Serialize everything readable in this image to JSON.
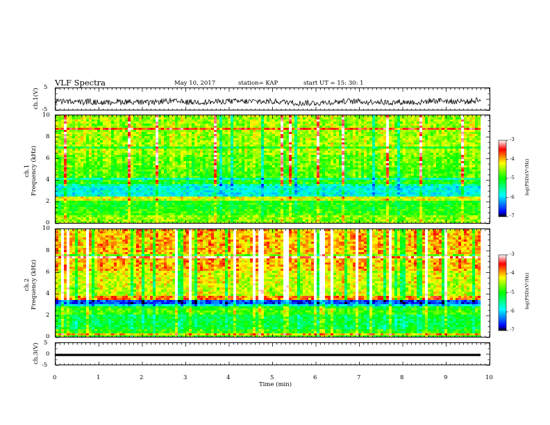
{
  "header": {
    "title": "VLF Spectra",
    "date": "May 10, 2017",
    "station": "station= KAP",
    "start": "start  UT  =   15: 30: 1"
  },
  "chart_data": [
    {
      "type": "line",
      "panel": "ch1-waveform",
      "ylabel": "ch.1(V)",
      "ylim": [
        -5,
        5
      ],
      "yticks": [
        "5",
        "-5"
      ],
      "xlim": [
        0,
        10
      ],
      "series": [
        {
          "values_summary": "noisy waveform oscillating between about -3 and 1 V around -1 V"
        }
      ]
    },
    {
      "type": "heatmap",
      "panel": "ch1-spectrogram",
      "ylabel": "ch.1\nFrequency (kHz)",
      "ylim": [
        0,
        10
      ],
      "yticks": [
        "0",
        "2",
        "4",
        "6",
        "8",
        "10"
      ],
      "xlim": [
        0,
        10
      ],
      "colorbar": {
        "label": "log(PSD)(V²/Hz)",
        "range": [
          -7,
          -3
        ],
        "ticks": [
          "-3",
          "-4",
          "-5",
          "-6",
          "-7"
        ]
      },
      "bands_khz": [
        {
          "from": 0,
          "to": 0.8,
          "level": -4.6
        },
        {
          "from": 0.8,
          "to": 1.2,
          "level": -4.9
        },
        {
          "from": 1.2,
          "to": 2.0,
          "level": -5.0
        },
        {
          "from": 2.0,
          "to": 2.4,
          "level": -4.3
        },
        {
          "from": 2.4,
          "to": 3.4,
          "level": -5.8
        },
        {
          "from": 3.4,
          "to": 4.2,
          "level": -5.0
        },
        {
          "from": 4.2,
          "to": 5.2,
          "level": -4.8
        },
        {
          "from": 5.2,
          "to": 6.4,
          "level": -4.7
        },
        {
          "from": 6.4,
          "to": 10,
          "level": -4.5
        }
      ]
    },
    {
      "type": "heatmap",
      "panel": "ch2-spectrogram",
      "ylabel": "ch.2\nFrequency (kHz)",
      "ylim": [
        0,
        10
      ],
      "yticks": [
        "0",
        "2",
        "4",
        "6",
        "8",
        "10"
      ],
      "xlim": [
        0,
        10
      ],
      "colorbar": {
        "label": "log(PSD)(V²/Hz)",
        "range": [
          -7,
          -3
        ],
        "ticks": [
          "-3",
          "-4",
          "-5",
          "-6",
          "-7"
        ]
      },
      "bands_khz": [
        {
          "from": 0,
          "to": 0.8,
          "level": -4.9
        },
        {
          "from": 0.8,
          "to": 2.0,
          "level": -5.2
        },
        {
          "from": 2.0,
          "to": 2.6,
          "level": -4.8
        },
        {
          "from": 2.6,
          "to": 3.4,
          "level": -5.9
        },
        {
          "from": 3.4,
          "to": 3.8,
          "level": -3.8
        },
        {
          "from": 3.8,
          "to": 5.0,
          "level": -4.4
        },
        {
          "from": 5.0,
          "to": 6.2,
          "level": -4.3
        },
        {
          "from": 6.2,
          "to": 10,
          "level": -4.0
        }
      ]
    },
    {
      "type": "line",
      "panel": "ch3-waveform",
      "ylabel": "ch.3(V)",
      "ylim": [
        -5,
        5
      ],
      "yticks": [
        "5",
        "0",
        "-5"
      ],
      "xlim": [
        0,
        10
      ],
      "xlabel": "Time (min)",
      "xticks": [
        "0",
        "1",
        "2",
        "3",
        "4",
        "5",
        "6",
        "7",
        "8",
        "9",
        "10"
      ],
      "series": [
        {
          "values_summary": "flat line at about -1 V from 0 to 9.8 min"
        }
      ]
    }
  ]
}
